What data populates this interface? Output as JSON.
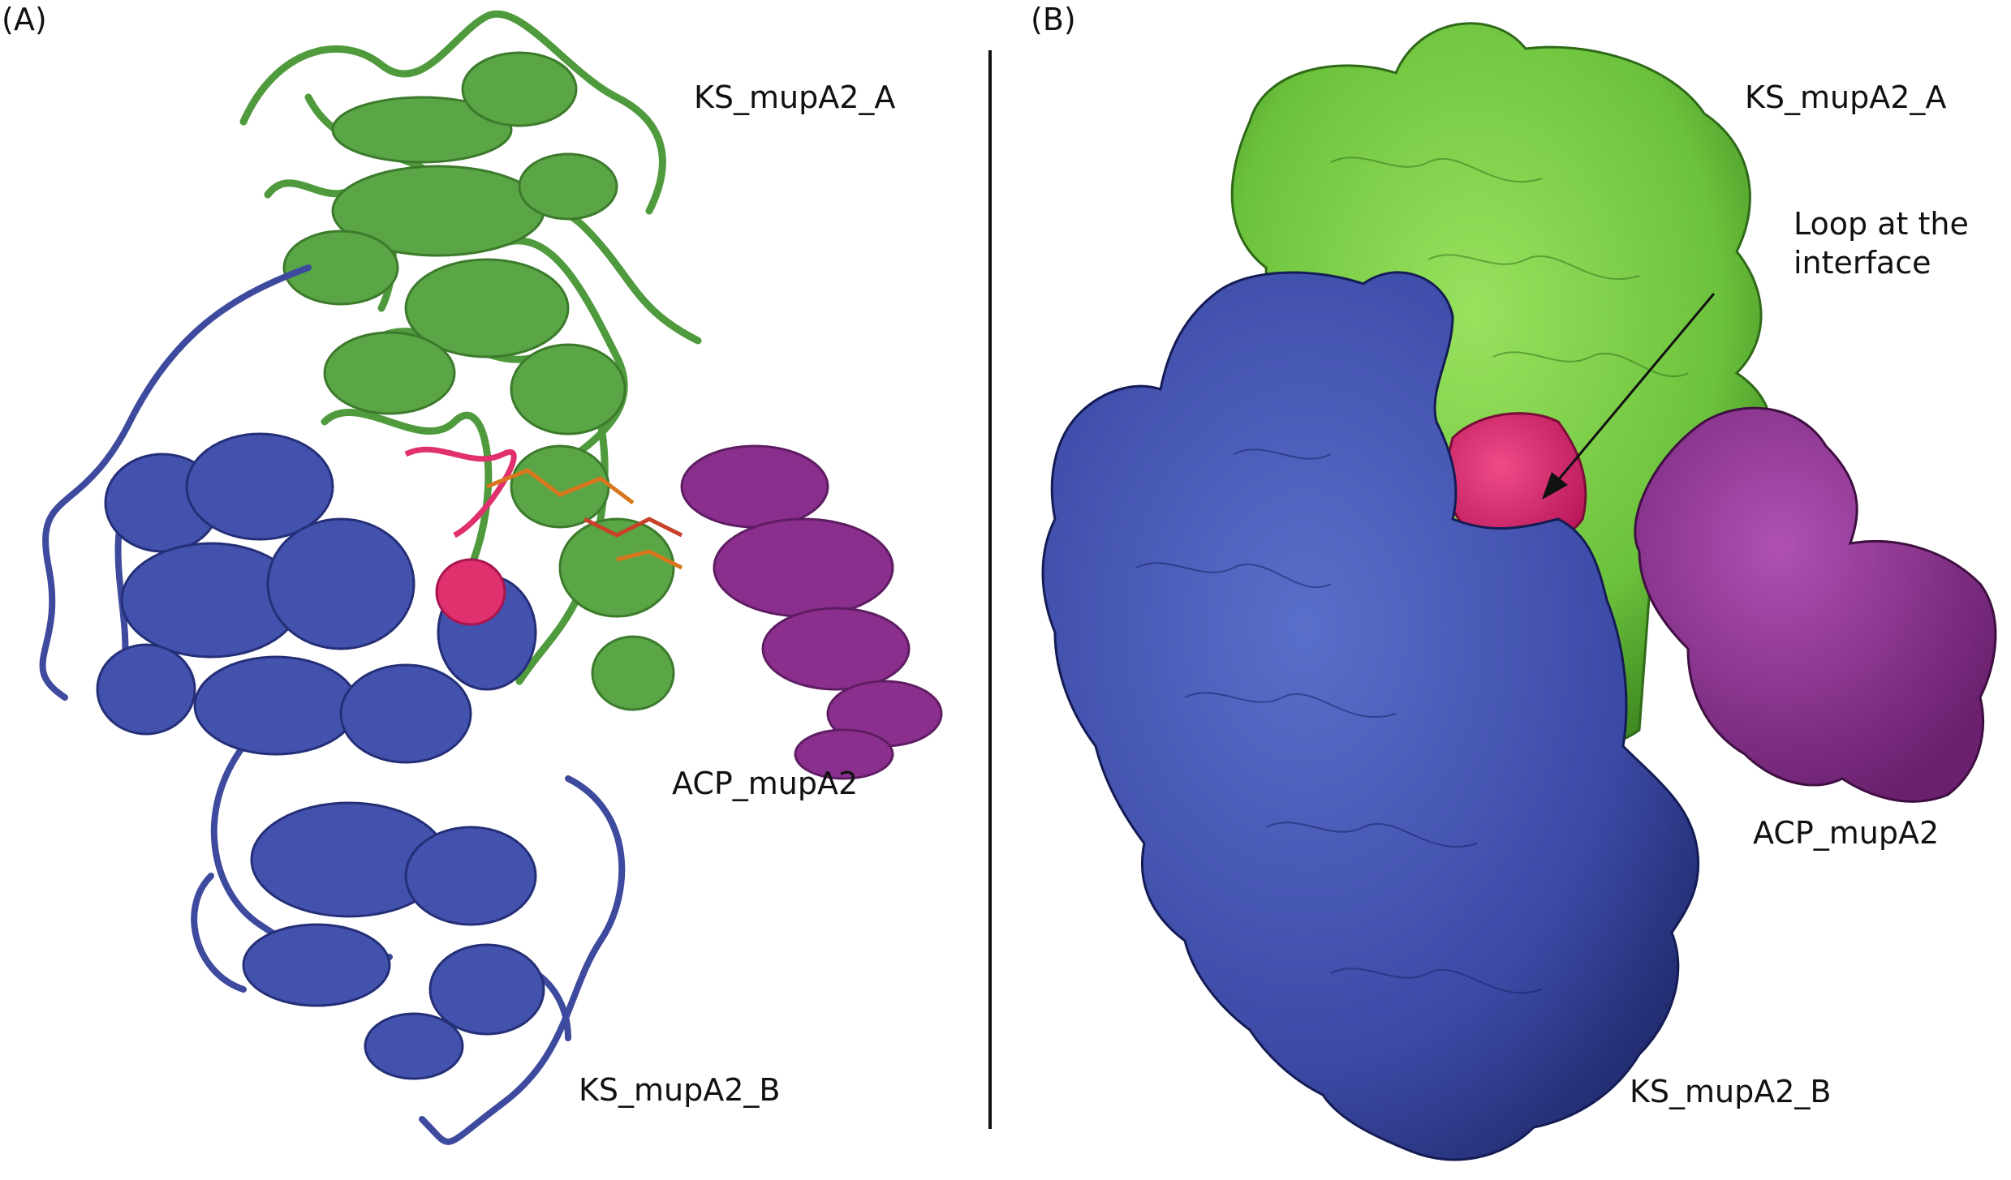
{
  "panel_a": {
    "letter": "(A)",
    "labels": {
      "ks_a": "KS_mupA2_A",
      "acp": "ACP_mupA2",
      "ks_b": "KS_mupA2_B"
    }
  },
  "panel_b": {
    "letter": "(B)",
    "labels": {
      "ks_a": "KS_mupA2_A",
      "loop_line1": "Loop at the",
      "loop_line2": "interface",
      "acp": "ACP_mupA2",
      "ks_b": "KS_mupA2_B"
    }
  },
  "colors": {
    "ks_a_cartoon": "#4f9a3c",
    "ks_a_surface": "#7ccf45",
    "ks_b": "#3d4a9e",
    "acp": "#8b2f8f",
    "loop": "#e0306e",
    "ligand": "#d9771e"
  }
}
